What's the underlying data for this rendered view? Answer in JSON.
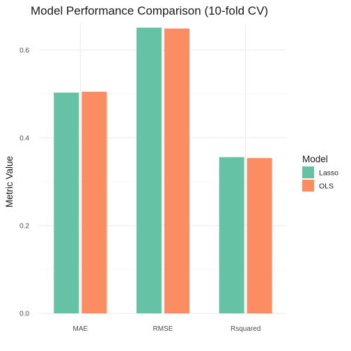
{
  "chart_data": {
    "type": "bar",
    "title": "Model Performance Comparison (10-fold CV)",
    "xlabel": "",
    "ylabel": "Metric Value",
    "categories": [
      "MAE",
      "RMSE",
      "Rsquared"
    ],
    "series": [
      {
        "name": "Lasso",
        "color": "#66c2a5",
        "values": [
          0.503,
          0.651,
          0.356
        ]
      },
      {
        "name": "OLS",
        "color": "#fc8d62",
        "values": [
          0.505,
          0.649,
          0.354
        ]
      }
    ],
    "ylim": [
      0,
      0.66
    ],
    "yticks": [
      0.0,
      0.2,
      0.4,
      0.6
    ],
    "ytick_labels": [
      "0.0",
      "0.2",
      "0.4",
      "0.6"
    ],
    "grid": true,
    "legend": {
      "title": "Model",
      "position": "right"
    }
  }
}
